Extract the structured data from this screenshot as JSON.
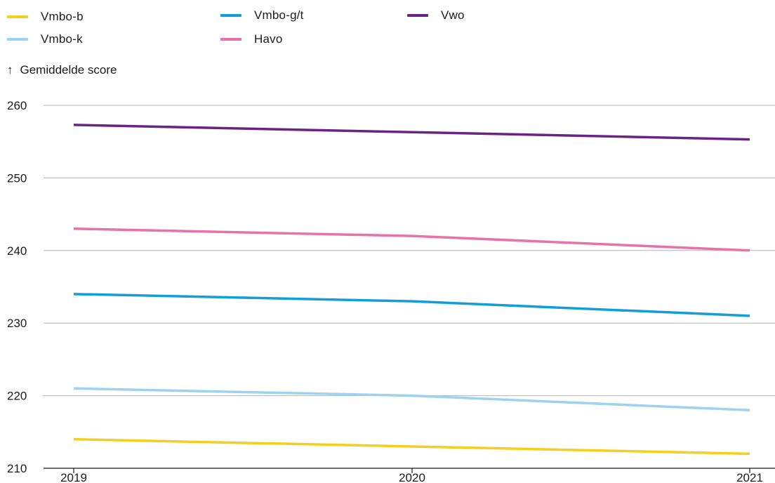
{
  "chart_data": {
    "type": "line",
    "ylabel": "Gemiddelde score",
    "x": [
      "2019",
      "2020",
      "2021"
    ],
    "ylim": [
      210,
      260
    ],
    "yticks": [
      "210",
      "220",
      "230",
      "240",
      "250",
      "260"
    ],
    "grid": true,
    "legend_position": "top-left",
    "series": [
      {
        "name": "Vmbo-b",
        "color": "#f6cf1e",
        "values": [
          214,
          213,
          212
        ]
      },
      {
        "name": "Vmbo-k",
        "color": "#9dd3f0",
        "values": [
          221,
          220,
          218
        ]
      },
      {
        "name": "Vmbo-g/t",
        "color": "#119ed9",
        "values": [
          234,
          233,
          231
        ]
      },
      {
        "name": "Havo",
        "color": "#e872a6",
        "values": [
          243,
          242,
          240
        ]
      },
      {
        "name": "Vwo",
        "color": "#6a2384",
        "values": [
          257.3,
          256.3,
          255.3
        ]
      }
    ]
  }
}
